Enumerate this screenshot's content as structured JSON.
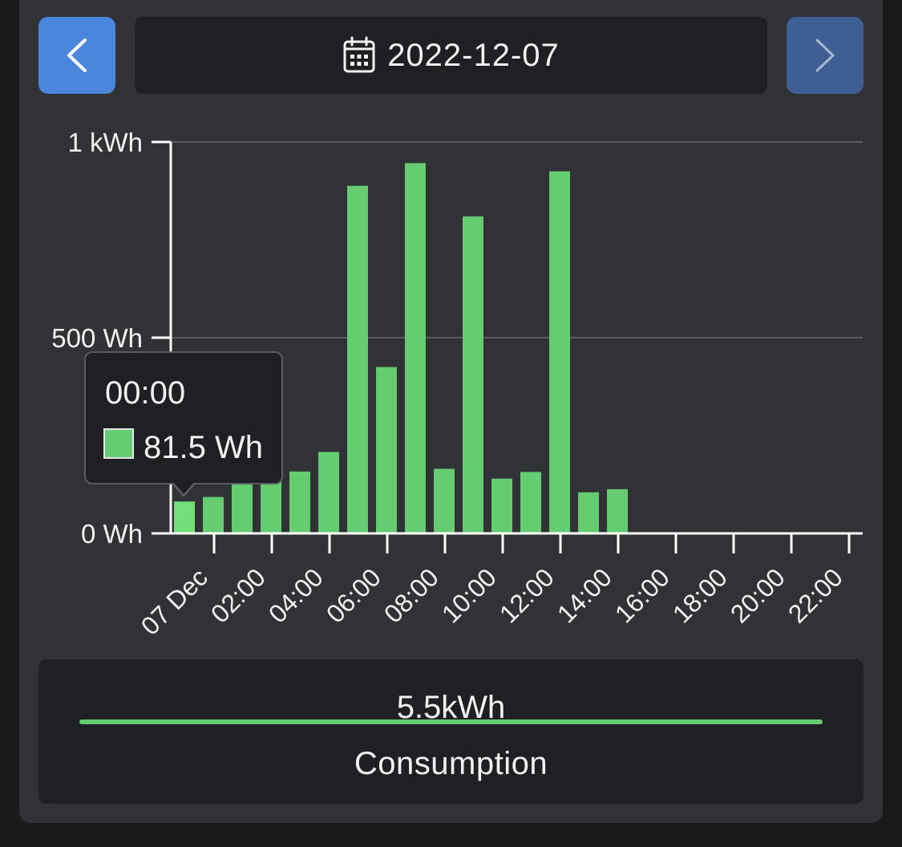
{
  "header": {
    "date": "2022-12-07",
    "prev_icon": "chevron-left-icon",
    "next_icon": "chevron-right-icon",
    "calendar_icon": "calendar-icon"
  },
  "colors": {
    "bar": "#66cc72",
    "bar_highlight": "#74de7a",
    "prev_button": "#4a86dc",
    "next_button": "#3d5f93",
    "grid": "#5a5c60"
  },
  "chart_data": {
    "type": "bar",
    "y_ticks": [
      "0 Wh",
      "500 Wh",
      "1 kWh"
    ],
    "y_tick_values": [
      0,
      500,
      1000
    ],
    "ylim": [
      0,
      1000
    ],
    "x_ticks": [
      "07 Dec",
      "02:00",
      "04:00",
      "06:00",
      "08:00",
      "10:00",
      "12:00",
      "14:00",
      "16:00",
      "18:00",
      "20:00",
      "22:00"
    ],
    "categories": [
      "00:00",
      "01:00",
      "02:00",
      "03:00",
      "04:00",
      "05:00",
      "06:00",
      "07:00",
      "08:00",
      "09:00",
      "10:00",
      "11:00",
      "12:00",
      "13:00",
      "14:00",
      "15:00",
      "16:00",
      "17:00",
      "18:00",
      "19:00",
      "20:00",
      "21:00",
      "22:00",
      "23:00"
    ],
    "values": [
      81.5,
      93,
      128,
      142,
      158,
      208,
      888,
      425,
      946,
      165,
      810,
      140,
      157,
      925,
      105,
      113,
      null,
      null,
      null,
      null,
      null,
      null,
      null,
      null
    ],
    "highlighted_index": 0,
    "grid": true
  },
  "tooltip": {
    "time": "00:00",
    "value": "81.5 Wh"
  },
  "summary": {
    "total": "5.5kWh",
    "label": "Consumption"
  }
}
